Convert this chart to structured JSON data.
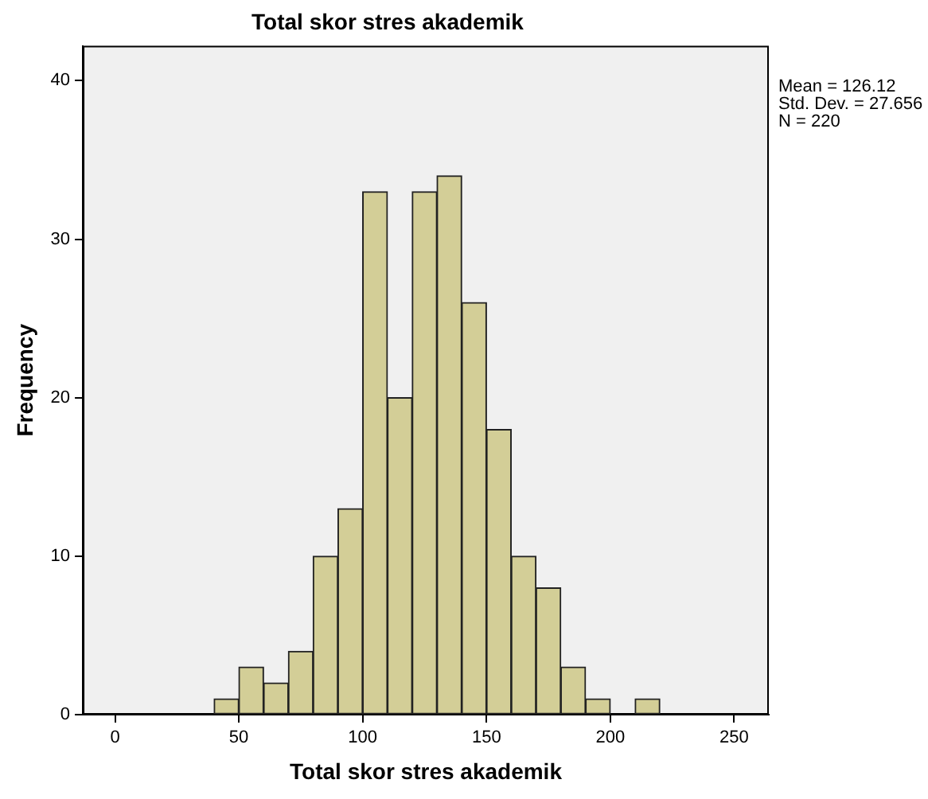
{
  "chart_data": {
    "type": "histogram",
    "title": "Total skor stres akademik",
    "xlabel": "Total skor stres akademik",
    "ylabel": "Frequency",
    "bins": [
      40,
      50,
      60,
      70,
      80,
      90,
      100,
      110,
      120,
      130,
      140,
      150,
      160,
      170,
      180,
      190,
      200,
      210,
      220
    ],
    "values": [
      1,
      3,
      2,
      4,
      10,
      13,
      33,
      20,
      33,
      34,
      26,
      18,
      10,
      8,
      3,
      1,
      0,
      1
    ],
    "color": "#d3ce97",
    "xlim": [
      -13,
      264
    ],
    "xticks": [
      0,
      50,
      100,
      150,
      200,
      250
    ],
    "ylim": [
      0,
      42.2
    ],
    "yticks": [
      0,
      10,
      20,
      30,
      40
    ],
    "grid": false,
    "legend": false,
    "annotations": [
      "Mean = 126.12",
      "Std. Dev. = 27.656",
      "N = 220"
    ]
  }
}
